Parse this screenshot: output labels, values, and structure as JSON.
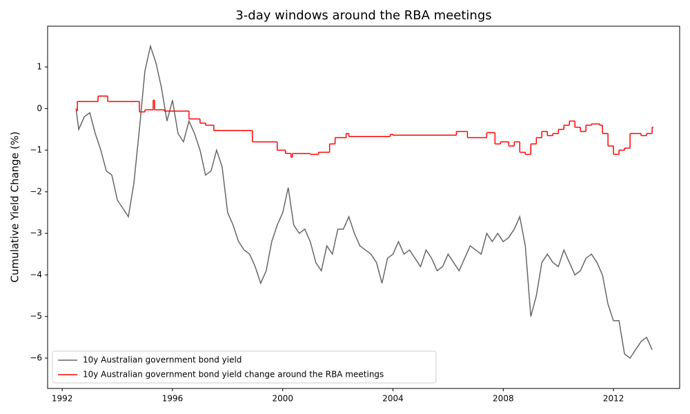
{
  "chart_data": {
    "type": "line",
    "title": "3-day windows around the RBA meetings",
    "y_label": "Cumulative Yield Change (%)",
    "xlim": [
      1991.47,
      2014.4
    ],
    "ylim": [
      -6.73,
      1.98
    ],
    "xticks": [
      1992,
      1996,
      2000,
      2004,
      2008,
      2012
    ],
    "yticks": [
      {
        "value": -6,
        "label": "−6"
      },
      {
        "value": -5,
        "label": "−5"
      },
      {
        "value": -4,
        "label": "−4"
      },
      {
        "value": -3,
        "label": "−3"
      },
      {
        "value": -2,
        "label": "−2"
      },
      {
        "value": -1,
        "label": "−1"
      },
      0,
      1
    ],
    "grid": false,
    "legend": "lower left",
    "series": [
      {
        "name": "10y Australian government bond yield",
        "color": "#666666",
        "drawstyle": "default",
        "x": [
          1992.5,
          1992.6,
          1992.8,
          1993.0,
          1993.2,
          1993.4,
          1993.6,
          1993.8,
          1994.0,
          1994.2,
          1994.4,
          1994.6,
          1994.8,
          1995.0,
          1995.2,
          1995.4,
          1995.6,
          1995.8,
          1996.0,
          1996.2,
          1996.4,
          1996.6,
          1996.8,
          1997.0,
          1997.2,
          1997.4,
          1997.6,
          1997.8,
          1998.0,
          1998.2,
          1998.4,
          1998.6,
          1998.8,
          1999.0,
          1999.2,
          1999.4,
          1999.6,
          1999.8,
          2000.0,
          2000.2,
          2000.4,
          2000.6,
          2000.8,
          2001.0,
          2001.2,
          2001.4,
          2001.6,
          2001.8,
          2002.0,
          2002.2,
          2002.4,
          2002.6,
          2002.8,
          2003.0,
          2003.2,
          2003.4,
          2003.6,
          2003.8,
          2004.0,
          2004.2,
          2004.4,
          2004.6,
          2004.8,
          2005.0,
          2005.2,
          2005.4,
          2005.6,
          2005.8,
          2006.0,
          2006.2,
          2006.4,
          2006.6,
          2006.8,
          2007.0,
          2007.2,
          2007.4,
          2007.6,
          2007.8,
          2008.0,
          2008.2,
          2008.4,
          2008.6,
          2008.8,
          2009.0,
          2009.2,
          2009.4,
          2009.6,
          2009.8,
          2010.0,
          2010.2,
          2010.4,
          2010.6,
          2010.8,
          2011.0,
          2011.2,
          2011.4,
          2011.6,
          2011.8,
          2012.0,
          2012.2,
          2012.4,
          2012.6,
          2012.8,
          2013.0,
          2013.2,
          2013.4
        ],
        "values": [
          0,
          -0.5,
          -0.2,
          -0.1,
          -0.6,
          -1.0,
          -1.5,
          -1.6,
          -2.2,
          -2.4,
          -2.6,
          -1.8,
          -0.5,
          0.9,
          1.5,
          1.1,
          0.5,
          -0.3,
          0.2,
          -0.6,
          -0.8,
          -0.3,
          -0.6,
          -1.0,
          -1.6,
          -1.5,
          -1.0,
          -1.4,
          -2.5,
          -2.8,
          -3.2,
          -3.4,
          -3.5,
          -3.8,
          -4.2,
          -3.9,
          -3.2,
          -2.8,
          -2.5,
          -1.9,
          -2.8,
          -3.0,
          -2.9,
          -3.2,
          -3.7,
          -3.9,
          -3.3,
          -3.5,
          -2.9,
          -2.9,
          -2.6,
          -3.0,
          -3.3,
          -3.4,
          -3.5,
          -3.7,
          -4.2,
          -3.6,
          -3.5,
          -3.2,
          -3.5,
          -3.4,
          -3.6,
          -3.8,
          -3.4,
          -3.6,
          -3.9,
          -3.8,
          -3.5,
          -3.7,
          -3.9,
          -3.6,
          -3.3,
          -3.4,
          -3.5,
          -3.0,
          -3.2,
          -3.0,
          -3.2,
          -3.1,
          -2.9,
          -2.6,
          -3.3,
          -5.0,
          -4.5,
          -3.7,
          -3.5,
          -3.7,
          -3.8,
          -3.4,
          -3.7,
          -4.0,
          -3.9,
          -3.6,
          -3.5,
          -3.7,
          -4.0,
          -4.7,
          -5.1,
          -5.1,
          -5.9,
          -6.0,
          -5.8,
          -5.6,
          -5.5,
          -5.8
        ]
      },
      {
        "name": "10y Australian government bond yield change around the RBA meetings",
        "color": "#ff0000",
        "drawstyle": "steps-post",
        "x": [
          1992.5,
          1992.55,
          1993.3,
          1993.65,
          1994.7,
          1994.8,
          1995.0,
          1995.3,
          1995.35,
          1995.7,
          1996.6,
          1997.0,
          1997.2,
          1997.5,
          1998.9,
          1999.8,
          2000.1,
          2000.3,
          2000.35,
          2001.0,
          2001.3,
          2001.7,
          2001.9,
          2002.3,
          2002.4,
          2003.9,
          2004.0,
          2006.3,
          2006.7,
          2007.4,
          2007.7,
          2007.9,
          2008.2,
          2008.4,
          2008.6,
          2008.8,
          2009.0,
          2009.2,
          2009.4,
          2009.6,
          2009.8,
          2010.0,
          2010.2,
          2010.4,
          2010.6,
          2010.8,
          2011.0,
          2011.2,
          2011.5,
          2011.6,
          2011.8,
          2012.0,
          2012.2,
          2012.4,
          2012.6,
          2012.8,
          2013.0,
          2013.2,
          2013.4
        ],
        "values": [
          -0.05,
          0.17,
          0.3,
          0.17,
          0.17,
          -0.08,
          -0.03,
          0.2,
          -0.03,
          -0.06,
          -0.25,
          -0.35,
          -0.4,
          -0.53,
          -0.8,
          -1.0,
          -1.08,
          -1.17,
          -1.08,
          -1.1,
          -1.05,
          -0.85,
          -0.7,
          -0.6,
          -0.67,
          -0.62,
          -0.64,
          -0.55,
          -0.7,
          -0.58,
          -0.85,
          -0.8,
          -0.9,
          -0.8,
          -1.05,
          -1.1,
          -0.85,
          -0.7,
          -0.55,
          -0.65,
          -0.6,
          -0.5,
          -0.4,
          -0.3,
          -0.45,
          -0.55,
          -0.4,
          -0.37,
          -0.4,
          -0.6,
          -0.9,
          -1.1,
          -1.0,
          -0.95,
          -0.6,
          -0.6,
          -0.65,
          -0.6,
          -0.45
        ]
      }
    ]
  }
}
